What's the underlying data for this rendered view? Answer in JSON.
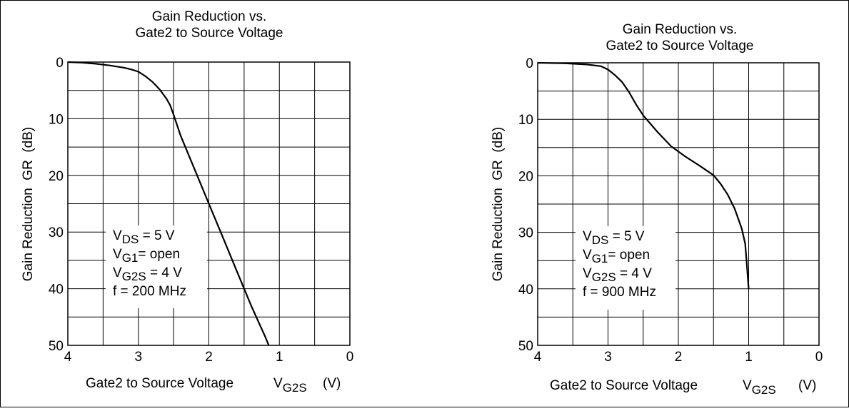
{
  "chart_data": [
    {
      "type": "line",
      "title_line1": "Gain Reduction vs.",
      "title_line2": "Gate2 to Source Voltage",
      "ylabel": "Gain Reduction  GR  (dB)",
      "xlabel_main": "Gate2 to Source Voltage",
      "xlabel_sym": "V",
      "xlabel_sub": "G2S",
      "xlabel_unit": "(V)",
      "xlim": [
        4,
        0
      ],
      "ylim": [
        0,
        50
      ],
      "x_ticks": [
        4,
        3.5,
        3,
        2.5,
        2,
        1.5,
        1,
        0.5,
        0
      ],
      "x_tick_labels": [
        "4",
        "",
        "3",
        "",
        "2",
        "",
        "1",
        "",
        "0"
      ],
      "y_ticks": [
        0,
        5,
        10,
        15,
        20,
        25,
        30,
        35,
        40,
        45,
        50
      ],
      "y_tick_labels": [
        "0",
        "",
        "10",
        "",
        "20",
        "",
        "30",
        "",
        "40",
        "",
        "50"
      ],
      "grid": true,
      "conditions": [
        {
          "sym": "V",
          "sub": "DS",
          "rest": " = 5 V"
        },
        {
          "sym": "V",
          "sub": "G1",
          "rest": "= open"
        },
        {
          "sym": "V",
          "sub": "G2S",
          "rest": " = 4 V"
        },
        {
          "sym": "",
          "sub": "",
          "rest": "f = 200 MHz"
        }
      ],
      "series": [
        {
          "x": [
            4.0,
            3.8,
            3.6,
            3.4,
            3.2,
            3.1,
            3.0,
            2.9,
            2.8,
            2.7,
            2.6,
            2.55,
            2.5,
            2.4,
            2.2,
            2.0,
            1.8,
            1.6,
            1.5,
            1.4,
            1.2,
            1.15
          ],
          "y": [
            0,
            0.1,
            0.3,
            0.6,
            1.0,
            1.3,
            1.7,
            2.5,
            3.5,
            4.8,
            6.5,
            7.6,
            9.3,
            13.0,
            19.0,
            25.0,
            31.0,
            37.0,
            40.0,
            43.0,
            48.5,
            50.0
          ]
        }
      ]
    },
    {
      "type": "line",
      "title_line1": "Gain Reduction vs.",
      "title_line2": "Gate2 to Source Voltage",
      "ylabel": "Gain Reduction  GR  (dB)",
      "xlabel_main": "Gate2 to Source Voltage",
      "xlabel_sym": "V",
      "xlabel_sub": "G2S",
      "xlabel_unit": "(V)",
      "xlim": [
        4,
        0
      ],
      "ylim": [
        0,
        50
      ],
      "x_ticks": [
        4,
        3.5,
        3,
        2.5,
        2,
        1.5,
        1,
        0.5,
        0
      ],
      "x_tick_labels": [
        "4",
        "",
        "3",
        "",
        "2",
        "",
        "1",
        "",
        "0"
      ],
      "y_ticks": [
        0,
        5,
        10,
        15,
        20,
        25,
        30,
        35,
        40,
        45,
        50
      ],
      "y_tick_labels": [
        "0",
        "",
        "10",
        "",
        "20",
        "",
        "30",
        "",
        "40",
        "",
        "50"
      ],
      "grid": true,
      "conditions": [
        {
          "sym": "V",
          "sub": "DS",
          "rest": " = 5 V"
        },
        {
          "sym": "V",
          "sub": "G1",
          "rest": "= open"
        },
        {
          "sym": "V",
          "sub": "G2S",
          "rest": " = 4 V"
        },
        {
          "sym": "",
          "sub": "",
          "rest": "f = 900 MHz"
        }
      ],
      "series": [
        {
          "x": [
            4.0,
            3.6,
            3.3,
            3.1,
            3.0,
            2.9,
            2.8,
            2.7,
            2.6,
            2.5,
            2.3,
            2.1,
            1.9,
            1.7,
            1.5,
            1.4,
            1.3,
            1.2,
            1.1,
            1.05,
            1.03,
            1.0
          ],
          "y": [
            0,
            0.1,
            0.3,
            0.6,
            1.2,
            2.2,
            3.4,
            5.2,
            7.4,
            9.3,
            12.2,
            14.8,
            16.6,
            18.2,
            19.9,
            21.4,
            23.3,
            25.8,
            29.3,
            32.0,
            35.0,
            40.0
          ]
        }
      ]
    }
  ]
}
